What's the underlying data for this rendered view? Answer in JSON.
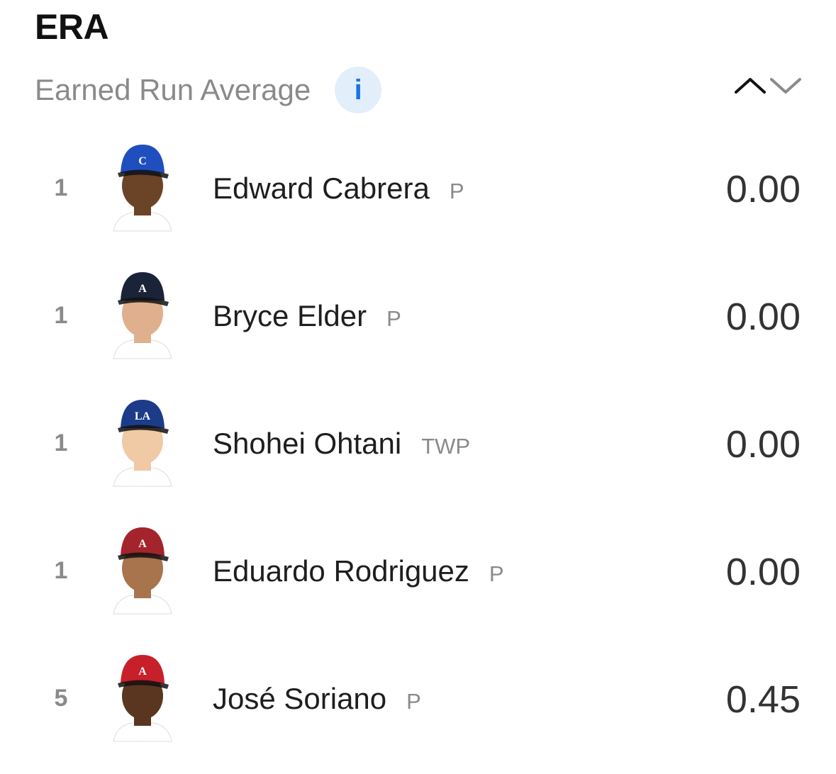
{
  "header": {
    "title": "ERA",
    "subtitle": "Earned Run Average",
    "info_icon": "info-icon",
    "info_glyph": "i"
  },
  "sort": {
    "up_icon": "chevron-up-icon",
    "down_icon": "chevron-down-icon"
  },
  "colors": {
    "info_bg": "#e3eefb",
    "info_fg": "#1a73e8",
    "muted": "#8a8a8a"
  },
  "leaders": [
    {
      "rank": "1",
      "name": "Edward Cabrera",
      "position": "P",
      "value": "0.00",
      "cap_color": "#1f4fbf",
      "logo": "C",
      "skin": "#6b4428",
      "jersey": "#ffffff"
    },
    {
      "rank": "1",
      "name": "Bryce Elder",
      "position": "P",
      "value": "0.00",
      "cap_color": "#1b2338",
      "logo": "A",
      "skin": "#e0b08e",
      "jersey": "#ffffff"
    },
    {
      "rank": "1",
      "name": "Shohei Ohtani",
      "position": "TWP",
      "value": "0.00",
      "cap_color": "#1c3c8a",
      "logo": "LA",
      "skin": "#f0c9a5",
      "jersey": "#ffffff"
    },
    {
      "rank": "1",
      "name": "Eduardo Rodriguez",
      "position": "P",
      "value": "0.00",
      "cap_color": "#a3242c",
      "logo": "A",
      "skin": "#a8744d",
      "jersey": "#ffffff"
    },
    {
      "rank": "5",
      "name": "José Soriano",
      "position": "P",
      "value": "0.45",
      "cap_color": "#c8202b",
      "logo": "A",
      "skin": "#5a3620",
      "jersey": "#ffffff"
    }
  ]
}
